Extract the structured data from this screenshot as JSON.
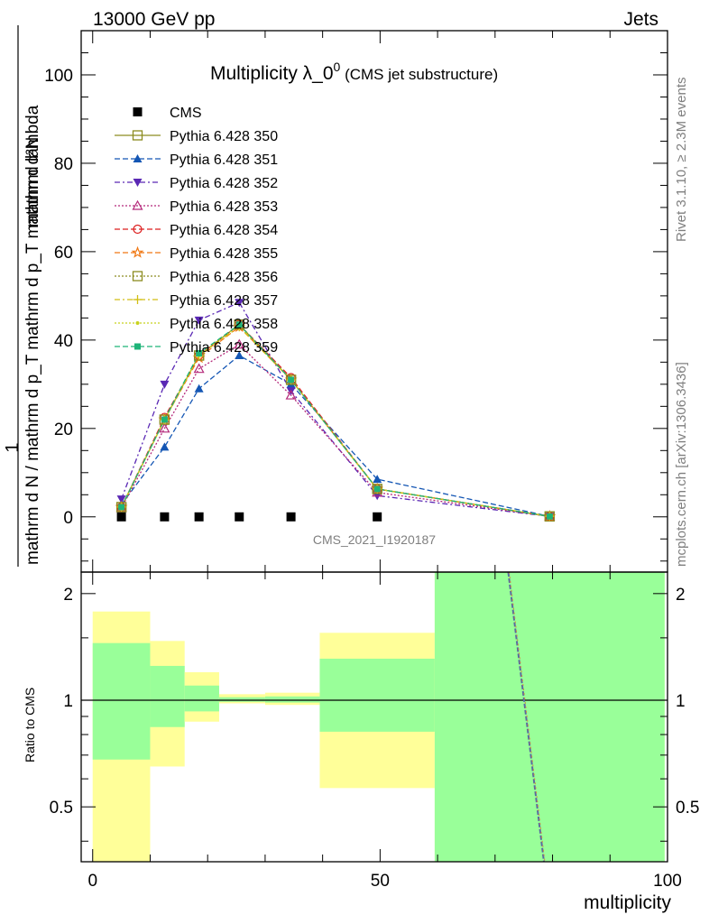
{
  "header": {
    "left": "13000 GeV pp",
    "right": "Jets"
  },
  "side_text": {
    "rivet": "Rivet 3.1.10, ≥ 2.3M events",
    "mcplots": "mcplots.cern.ch [arXiv:1306.3436]"
  },
  "watermark": "CMS_2021_I1920187",
  "chart_data": {
    "type": "scatter",
    "title": "Multiplicity λ_0",
    "title_sup": "0",
    "subtitle": "(CMS jet substructure)",
    "ylabel_num": "mathrm d²N",
    "ylabel_den": "mathrm d N / mathrm d p_T mathrm d p_T mathrm d lambda",
    "ylabel_one": "1",
    "xlabel": "multiplicity",
    "ratio_ylabel": "Ratio to CMS",
    "xlim": [
      -2,
      100
    ],
    "ylim": [
      -12.5,
      110
    ],
    "ratio_ylim": [
      0.35,
      2.3
    ],
    "x_ticks": [
      "0",
      "50",
      "100"
    ],
    "y_ticks": [
      "0",
      "20",
      "40",
      "60",
      "80",
      "100"
    ],
    "ratio_ticks": [
      "0.5",
      "1",
      "2"
    ],
    "data": {
      "name": "CMS",
      "x": [
        5,
        12.5,
        18.5,
        25.5,
        34.5,
        49.5
      ],
      "y": [
        0,
        0,
        0,
        0,
        0,
        0
      ]
    },
    "series": [
      {
        "name": "Pythia 6.428 350",
        "color": "#8c8c20",
        "marker": "square-open",
        "dash": "solid",
        "x": [
          5,
          12.5,
          18.5,
          25.5,
          34.5,
          49.5,
          79.5
        ],
        "y": [
          2.2,
          22.0,
          36.5,
          43.5,
          31.0,
          6.3,
          0.1
        ]
      },
      {
        "name": "Pythia 6.428 351",
        "color": "#1456b4",
        "marker": "triangle-up",
        "dash": "6,3",
        "x": [
          5,
          12.5,
          18.5,
          25.5,
          34.5,
          49.5,
          79.5
        ],
        "y": [
          2.8,
          15.8,
          29.0,
          36.5,
          30.0,
          8.5,
          0.1
        ]
      },
      {
        "name": "Pythia 6.428 352",
        "color": "#5a28b4",
        "marker": "triangle-down",
        "dash": "6,3,2,3",
        "x": [
          5,
          12.5,
          18.5,
          25.5,
          34.5,
          49.5,
          79.5
        ],
        "y": [
          4.0,
          30.0,
          44.5,
          48.5,
          28.5,
          4.8,
          0.1
        ]
      },
      {
        "name": "Pythia 6.428 353",
        "color": "#b4287a",
        "marker": "triangle-open",
        "dash": "2,2",
        "x": [
          5,
          12.5,
          18.5,
          25.5,
          34.5,
          49.5,
          79.5
        ],
        "y": [
          2.0,
          20.0,
          33.5,
          39.0,
          27.5,
          5.5,
          0.1
        ]
      },
      {
        "name": "Pythia 6.428 354",
        "color": "#dc1e1e",
        "marker": "circle-open",
        "dash": "6,3",
        "x": [
          5,
          12.5,
          18.5,
          25.5,
          34.5,
          49.5,
          79.5
        ],
        "y": [
          2.2,
          22.5,
          36.5,
          43.5,
          31.5,
          6.3,
          0.1
        ]
      },
      {
        "name": "Pythia 6.428 355",
        "color": "#f07814",
        "marker": "star",
        "dash": "6,3",
        "x": [
          5,
          12.5,
          18.5,
          25.5,
          34.5,
          49.5,
          79.5
        ],
        "y": [
          2.2,
          22.0,
          36.0,
          43.0,
          31.0,
          6.3,
          0.1
        ]
      },
      {
        "name": "Pythia 6.428 356",
        "color": "#8c8c20",
        "marker": "square-open",
        "dash": "2,2",
        "x": [
          5,
          12.5,
          18.5,
          25.5,
          34.5,
          49.5,
          79.5
        ],
        "y": [
          2.2,
          22.0,
          36.5,
          43.5,
          31.0,
          6.3,
          0.1
        ]
      },
      {
        "name": "Pythia 6.428 357",
        "color": "#d2be14",
        "marker": "cross",
        "dash": "6,3,2,3",
        "x": [
          5,
          12.5,
          18.5,
          25.5,
          34.5,
          49.5,
          79.5
        ],
        "y": [
          2.2,
          22.0,
          36.5,
          43.0,
          31.0,
          6.3,
          0.1
        ]
      },
      {
        "name": "Pythia 6.428 358",
        "color": "#c8d21e",
        "marker": "dot",
        "dash": "2,2",
        "x": [
          5,
          12.5,
          18.5,
          25.5,
          34.5,
          49.5,
          79.5
        ],
        "y": [
          2.2,
          22.0,
          36.5,
          43.5,
          31.0,
          6.3,
          0.1
        ]
      },
      {
        "name": "Pythia 6.428 359",
        "color": "#1eb478",
        "marker": "square-filled",
        "dash": "6,3",
        "x": [
          5,
          12.5,
          18.5,
          25.5,
          34.5,
          49.5,
          79.5
        ],
        "y": [
          2.2,
          22.0,
          37.0,
          43.5,
          31.0,
          6.3,
          0.1
        ]
      }
    ],
    "ratio_bands": [
      {
        "x0": 0,
        "x1": 10,
        "yellow": [
          0.35,
          1.78
        ],
        "green": [
          0.68,
          1.45
        ]
      },
      {
        "x0": 10,
        "x1": 16,
        "yellow": [
          0.65,
          1.47
        ],
        "green": [
          0.84,
          1.25
        ]
      },
      {
        "x0": 16,
        "x1": 22,
        "yellow": [
          0.87,
          1.2
        ],
        "green": [
          0.93,
          1.1
        ]
      },
      {
        "x0": 22,
        "x1": 30,
        "yellow": [
          0.98,
          1.04
        ],
        "green": [
          0.99,
          1.02
        ]
      },
      {
        "x0": 30,
        "x1": 39.5,
        "yellow": [
          0.97,
          1.05
        ],
        "green": [
          0.985,
          1.025
        ]
      },
      {
        "x0": 39.5,
        "x1": 59.5,
        "yellow": [
          0.565,
          1.55
        ],
        "green": [
          0.815,
          1.31
        ]
      },
      {
        "x0": 59.5,
        "x1": 99.5,
        "yellow": [
          0.35,
          2.3
        ],
        "green": [
          0.35,
          2.3
        ]
      }
    ],
    "ratio_line": {
      "x": [
        72.3,
        78.5
      ],
      "y": [
        2.3,
        0.35
      ]
    },
    "colors": {
      "band_yellow": "#ffff99",
      "band_green": "#99ff99",
      "data": "#000000"
    }
  }
}
